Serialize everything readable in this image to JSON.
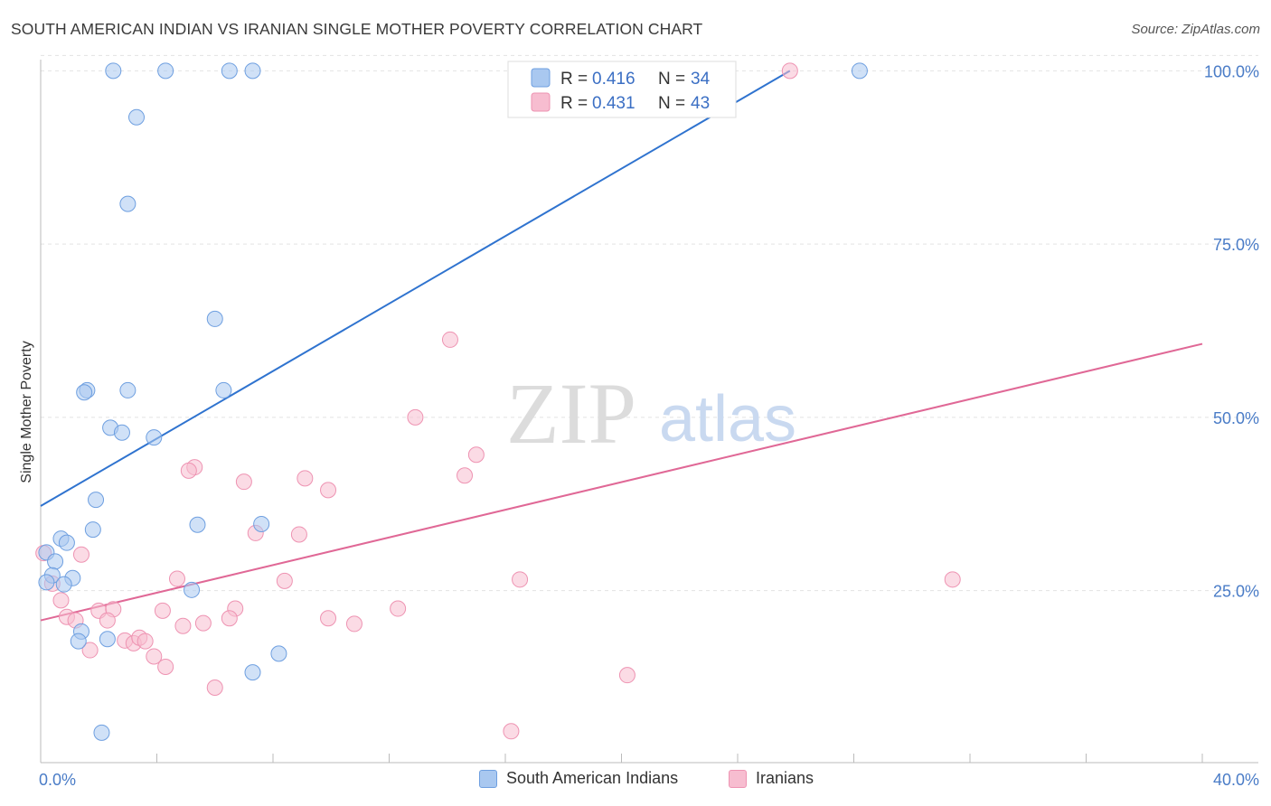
{
  "title": "SOUTH AMERICAN INDIAN VS IRANIAN SINGLE MOTHER POVERTY CORRELATION CHART",
  "source": "Source: ZipAtlas.com",
  "watermark": {
    "zip": "ZIP",
    "atlas": "atlas"
  },
  "colors": {
    "blue_fill": "#a9c8f0",
    "blue_stroke": "#6e9fe0",
    "blue_line": "#2f73cf",
    "pink_fill": "#f7bdd0",
    "pink_stroke": "#ee93b2",
    "pink_line": "#e06896"
  },
  "legend": {
    "rows": [
      {
        "r_label": "R = ",
        "r_value": "0.416",
        "n_label": "N = ",
        "n_value": "34"
      },
      {
        "r_label": "R = ",
        "r_value": "0.431",
        "n_label": "N = ",
        "n_value": "43"
      }
    ]
  },
  "bottom_legend": {
    "items": [
      {
        "label": "South American Indians"
      },
      {
        "label": "Iranians"
      }
    ]
  },
  "chart_data": {
    "type": "scatter",
    "title": "SOUTH AMERICAN INDIAN VS IRANIAN SINGLE MOTHER POVERTY CORRELATION CHART",
    "xlabel": "",
    "ylabel": "Single Mother Poverty",
    "xlim": [
      0,
      40
    ],
    "ylim": [
      2,
      102
    ],
    "x_tick_labels": [
      "0.0%",
      "40.0%"
    ],
    "y_ticks": [
      25,
      50,
      75,
      100
    ],
    "y_tick_labels": [
      "25.0%",
      "50.0%",
      "75.0%",
      "100.0%"
    ],
    "grid": true,
    "legend_position": "top-center",
    "series": [
      {
        "name": "South American Indians",
        "R": 0.416,
        "N": 34,
        "trend": {
          "x": [
            0,
            25.8
          ],
          "y": [
            37.2,
            100
          ]
        },
        "points": [
          [
            2.5,
            100
          ],
          [
            4.3,
            100
          ],
          [
            6.5,
            100
          ],
          [
            7.3,
            100
          ],
          [
            28.2,
            100
          ],
          [
            3.3,
            93.3
          ],
          [
            3.0,
            80.8
          ],
          [
            6.0,
            64.2
          ],
          [
            1.6,
            53.9
          ],
          [
            1.5,
            53.6
          ],
          [
            3.0,
            53.9
          ],
          [
            6.3,
            53.9
          ],
          [
            2.4,
            48.5
          ],
          [
            2.8,
            47.8
          ],
          [
            3.9,
            47.1
          ],
          [
            1.9,
            38.1
          ],
          [
            1.8,
            33.8
          ],
          [
            5.4,
            34.5
          ],
          [
            7.6,
            34.6
          ],
          [
            0.7,
            32.5
          ],
          [
            0.9,
            31.9
          ],
          [
            0.2,
            30.5
          ],
          [
            0.5,
            29.2
          ],
          [
            0.4,
            27.2
          ],
          [
            1.1,
            26.8
          ],
          [
            0.2,
            26.2
          ],
          [
            0.8,
            25.9
          ],
          [
            5.2,
            25.1
          ],
          [
            1.4,
            19.1
          ],
          [
            1.3,
            17.7
          ],
          [
            2.3,
            18.0
          ],
          [
            8.2,
            15.9
          ],
          [
            7.3,
            13.2
          ],
          [
            2.1,
            4.5
          ]
        ]
      },
      {
        "name": "Iranians",
        "R": 0.431,
        "N": 43,
        "trend": {
          "x": [
            0,
            40
          ],
          "y": [
            20.7,
            60.6
          ]
        },
        "points": [
          [
            25.8,
            100
          ],
          [
            14.1,
            61.2
          ],
          [
            12.9,
            50.0
          ],
          [
            15.0,
            44.6
          ],
          [
            14.6,
            41.6
          ],
          [
            5.3,
            42.8
          ],
          [
            5.1,
            42.3
          ],
          [
            7.0,
            40.7
          ],
          [
            9.1,
            41.2
          ],
          [
            9.9,
            39.5
          ],
          [
            7.4,
            33.3
          ],
          [
            8.9,
            33.1
          ],
          [
            0.1,
            30.4
          ],
          [
            1.4,
            30.2
          ],
          [
            4.7,
            26.7
          ],
          [
            8.4,
            26.4
          ],
          [
            16.5,
            26.6
          ],
          [
            31.4,
            26.6
          ],
          [
            0.4,
            26.0
          ],
          [
            0.7,
            23.6
          ],
          [
            2.0,
            22.1
          ],
          [
            2.5,
            22.3
          ],
          [
            4.2,
            22.1
          ],
          [
            6.7,
            22.4
          ],
          [
            12.3,
            22.4
          ],
          [
            0.9,
            21.2
          ],
          [
            1.2,
            20.7
          ],
          [
            2.3,
            20.7
          ],
          [
            6.5,
            21.0
          ],
          [
            9.9,
            21.0
          ],
          [
            4.9,
            19.9
          ],
          [
            5.6,
            20.3
          ],
          [
            10.8,
            20.2
          ],
          [
            2.9,
            17.8
          ],
          [
            3.2,
            17.4
          ],
          [
            3.4,
            18.2
          ],
          [
            3.6,
            17.7
          ],
          [
            1.7,
            16.4
          ],
          [
            3.9,
            15.5
          ],
          [
            4.3,
            14.0
          ],
          [
            20.2,
            12.8
          ],
          [
            6.0,
            11.0
          ],
          [
            16.2,
            4.7
          ]
        ]
      }
    ]
  }
}
